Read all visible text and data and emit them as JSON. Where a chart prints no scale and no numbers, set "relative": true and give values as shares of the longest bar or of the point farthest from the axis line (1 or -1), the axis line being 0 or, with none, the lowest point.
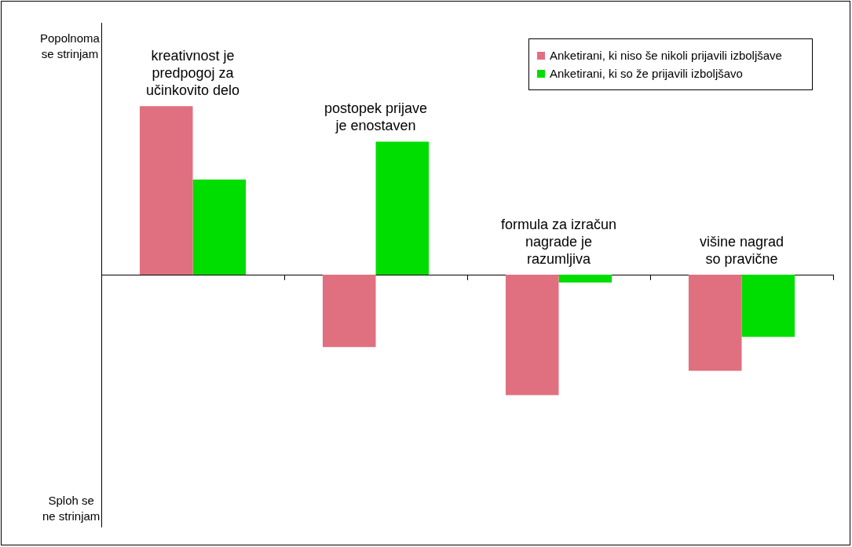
{
  "chart_data": {
    "type": "bar",
    "relative": true,
    "legend": "top right",
    "categories": [
      "kreativnost je\npredpogoj za\nučinkovito delo",
      "postopek prijave\nje enostaven",
      "formula za izračun\nnagrade je\nrazumljiva",
      "višine nagrad\nso pravične"
    ],
    "series": [
      {
        "name": "Anketirani, ki niso še nikoli prijavili izboljšave",
        "color": "#e07080",
        "values": [
          1,
          -0.43,
          -0.715,
          -0.57
        ]
      },
      {
        "name": "Anketirani, ki so že prijavili izboljšavo",
        "color": "#00dd00",
        "values": [
          0.565,
          0.79,
          -0.047,
          -0.369
        ]
      }
    ],
    "annotations": [
      "Popolnoma\nse strinjam",
      "Sploh se\nne strinjam"
    ]
  }
}
